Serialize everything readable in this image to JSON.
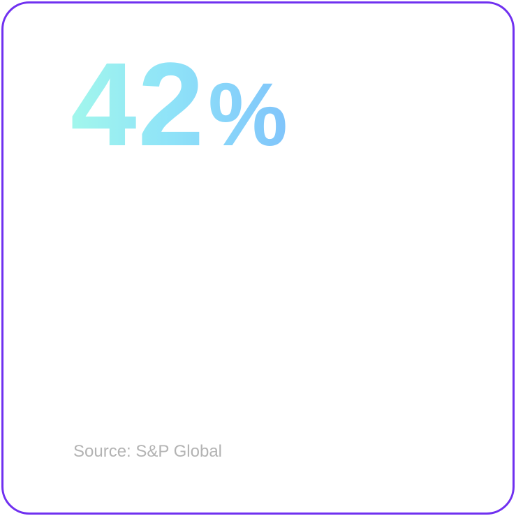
{
  "stat": {
    "number": "42",
    "unit": "%"
  },
  "source": "Source: S&P Global"
}
